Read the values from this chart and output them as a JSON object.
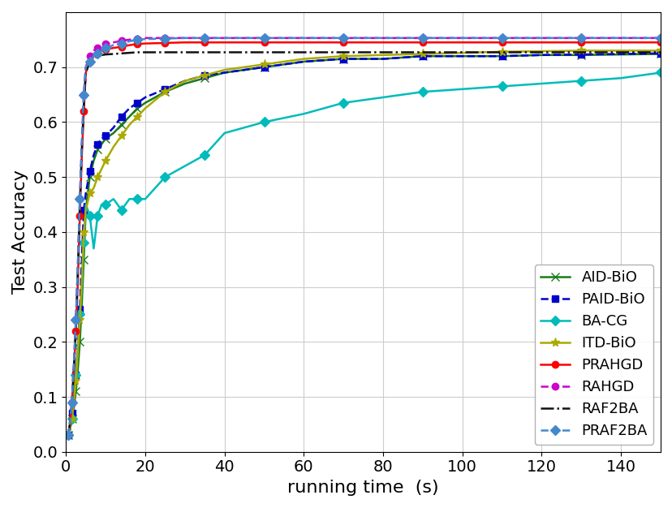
{
  "xlabel": "running time  (s)",
  "ylabel": "Test Accuracy",
  "xlim": [
    0,
    150
  ],
  "ylim": [
    0.0,
    0.8
  ],
  "yticks": [
    0.0,
    0.1,
    0.2,
    0.3,
    0.4,
    0.5,
    0.6,
    0.7
  ],
  "xticks": [
    0,
    20,
    40,
    60,
    80,
    100,
    120,
    140
  ],
  "series": [
    {
      "label": "AID-BiO",
      "color": "#1a7a1a",
      "linestyle": "-",
      "marker": "x",
      "linewidth": 1.8,
      "markersize": 7,
      "markevery": 2,
      "x": [
        0.5,
        1,
        1.5,
        2,
        2.5,
        3,
        3.5,
        4,
        4.5,
        5,
        6,
        7,
        8,
        9,
        10,
        12,
        14,
        16,
        18,
        20,
        25,
        30,
        35,
        40,
        50,
        60,
        70,
        80,
        90,
        100,
        110,
        120,
        130,
        140,
        150
      ],
      "y": [
        0.03,
        0.04,
        0.06,
        0.08,
        0.11,
        0.15,
        0.2,
        0.27,
        0.35,
        0.44,
        0.5,
        0.53,
        0.55,
        0.56,
        0.57,
        0.58,
        0.595,
        0.61,
        0.625,
        0.635,
        0.655,
        0.67,
        0.68,
        0.69,
        0.7,
        0.71,
        0.715,
        0.715,
        0.72,
        0.72,
        0.72,
        0.722,
        0.722,
        0.723,
        0.724
      ]
    },
    {
      "label": "PAID-BiO",
      "color": "#0000cc",
      "linestyle": "--",
      "marker": "s",
      "linewidth": 1.8,
      "markersize": 6,
      "markevery": 2,
      "x": [
        0.5,
        1,
        1.5,
        2,
        2.5,
        3,
        3.5,
        4,
        4.5,
        5,
        6,
        7,
        8,
        9,
        10,
        12,
        14,
        16,
        18,
        20,
        25,
        30,
        35,
        40,
        50,
        60,
        70,
        80,
        90,
        100,
        110,
        120,
        130,
        140,
        150
      ],
      "y": [
        0.03,
        0.04,
        0.07,
        0.1,
        0.14,
        0.19,
        0.26,
        0.35,
        0.44,
        0.47,
        0.51,
        0.54,
        0.56,
        0.57,
        0.575,
        0.59,
        0.61,
        0.625,
        0.635,
        0.645,
        0.66,
        0.675,
        0.685,
        0.69,
        0.7,
        0.71,
        0.715,
        0.715,
        0.72,
        0.72,
        0.72,
        0.722,
        0.723,
        0.724,
        0.725
      ]
    },
    {
      "label": "BA-CG",
      "color": "#00bbbb",
      "linestyle": "-",
      "marker": "D",
      "linewidth": 1.8,
      "markersize": 6,
      "markevery": 2,
      "x": [
        0.5,
        1,
        1.5,
        2,
        2.5,
        3,
        3.5,
        4,
        4.5,
        5,
        6,
        7,
        8,
        9,
        10,
        12,
        14,
        16,
        18,
        20,
        25,
        30,
        35,
        40,
        50,
        60,
        70,
        80,
        90,
        100,
        110,
        120,
        130,
        140,
        150
      ],
      "y": [
        0.03,
        0.04,
        0.06,
        0.1,
        0.14,
        0.19,
        0.25,
        0.3,
        0.38,
        0.45,
        0.43,
        0.37,
        0.43,
        0.45,
        0.45,
        0.46,
        0.44,
        0.46,
        0.46,
        0.46,
        0.5,
        0.52,
        0.54,
        0.58,
        0.6,
        0.615,
        0.635,
        0.645,
        0.655,
        0.66,
        0.665,
        0.67,
        0.675,
        0.68,
        0.69
      ]
    },
    {
      "label": "ITD-BiO",
      "color": "#aaaa00",
      "linestyle": "-",
      "marker": "*",
      "linewidth": 1.8,
      "markersize": 8,
      "markevery": 2,
      "x": [
        0.5,
        1,
        1.5,
        2,
        2.5,
        3,
        3.5,
        4,
        4.5,
        5,
        6,
        7,
        8,
        9,
        10,
        12,
        14,
        16,
        18,
        20,
        25,
        30,
        35,
        40,
        50,
        60,
        70,
        80,
        90,
        100,
        110,
        120,
        130,
        140,
        150
      ],
      "y": [
        0.03,
        0.04,
        0.06,
        0.09,
        0.13,
        0.18,
        0.24,
        0.31,
        0.4,
        0.44,
        0.47,
        0.48,
        0.5,
        0.515,
        0.53,
        0.555,
        0.575,
        0.595,
        0.61,
        0.625,
        0.655,
        0.675,
        0.685,
        0.695,
        0.705,
        0.715,
        0.72,
        0.722,
        0.724,
        0.726,
        0.728,
        0.729,
        0.73,
        0.73,
        0.73
      ]
    },
    {
      "label": "PRAHGD",
      "color": "#ff0000",
      "linestyle": "-",
      "marker": "o",
      "linewidth": 1.8,
      "markersize": 6,
      "markevery": 2,
      "x": [
        0.5,
        1,
        1.5,
        2,
        2.5,
        3,
        3.5,
        4,
        4.5,
        5,
        6,
        7,
        8,
        9,
        10,
        12,
        14,
        16,
        18,
        20,
        25,
        30,
        35,
        40,
        50,
        60,
        70,
        80,
        90,
        100,
        110,
        120,
        130,
        140,
        150
      ],
      "y": [
        0.03,
        0.05,
        0.09,
        0.15,
        0.22,
        0.31,
        0.43,
        0.54,
        0.62,
        0.69,
        0.71,
        0.72,
        0.725,
        0.73,
        0.732,
        0.735,
        0.737,
        0.74,
        0.742,
        0.743,
        0.744,
        0.745,
        0.745,
        0.745,
        0.745,
        0.745,
        0.745,
        0.745,
        0.745,
        0.745,
        0.745,
        0.745,
        0.745,
        0.745,
        0.745
      ]
    },
    {
      "label": "RAHGD",
      "color": "#cc00cc",
      "linestyle": "--",
      "marker": "o",
      "linewidth": 1.8,
      "markersize": 6,
      "markevery": 2,
      "x": [
        0.5,
        1,
        1.5,
        2,
        2.5,
        3,
        3.5,
        4,
        4.5,
        5,
        6,
        7,
        8,
        9,
        10,
        12,
        14,
        16,
        18,
        20,
        25,
        30,
        35,
        40,
        50,
        60,
        70,
        80,
        90,
        100,
        110,
        120,
        130,
        140,
        150
      ],
      "y": [
        0.03,
        0.05,
        0.09,
        0.16,
        0.24,
        0.34,
        0.46,
        0.56,
        0.65,
        0.7,
        0.72,
        0.73,
        0.735,
        0.74,
        0.742,
        0.745,
        0.748,
        0.75,
        0.752,
        0.753,
        0.753,
        0.753,
        0.753,
        0.753,
        0.753,
        0.753,
        0.753,
        0.753,
        0.753,
        0.753,
        0.753,
        0.753,
        0.753,
        0.753,
        0.753
      ]
    },
    {
      "label": "RAF2BA",
      "color": "#111111",
      "linestyle": "-.",
      "marker": "None",
      "linewidth": 1.8,
      "markersize": 0,
      "markevery": 1,
      "x": [
        0.5,
        1,
        1.5,
        2,
        2.5,
        3,
        3.5,
        4,
        4.5,
        5,
        6,
        7,
        8,
        9,
        10,
        12,
        14,
        16,
        18,
        20,
        25,
        30,
        35,
        40,
        50,
        60,
        70,
        80,
        90,
        100,
        110,
        120,
        130,
        140,
        150
      ],
      "y": [
        0.03,
        0.05,
        0.09,
        0.15,
        0.23,
        0.33,
        0.45,
        0.55,
        0.63,
        0.69,
        0.71,
        0.715,
        0.72,
        0.722,
        0.723,
        0.724,
        0.725,
        0.726,
        0.727,
        0.727,
        0.727,
        0.727,
        0.727,
        0.727,
        0.727,
        0.727,
        0.727,
        0.727,
        0.727,
        0.727,
        0.727,
        0.727,
        0.727,
        0.727,
        0.727
      ]
    },
    {
      "label": "PRAF2BA",
      "color": "#4488cc",
      "linestyle": "--",
      "marker": "D",
      "linewidth": 1.8,
      "markersize": 6,
      "markevery": 2,
      "x": [
        0.5,
        1,
        1.5,
        2,
        2.5,
        3,
        3.5,
        4,
        4.5,
        5,
        6,
        7,
        8,
        9,
        10,
        12,
        14,
        16,
        18,
        20,
        25,
        30,
        35,
        40,
        50,
        60,
        70,
        80,
        90,
        100,
        110,
        120,
        130,
        140,
        150
      ],
      "y": [
        0.03,
        0.05,
        0.09,
        0.16,
        0.24,
        0.34,
        0.46,
        0.56,
        0.65,
        0.7,
        0.71,
        0.72,
        0.725,
        0.73,
        0.735,
        0.74,
        0.743,
        0.747,
        0.75,
        0.751,
        0.752,
        0.753,
        0.753,
        0.753,
        0.753,
        0.753,
        0.753,
        0.753,
        0.753,
        0.753,
        0.753,
        0.753,
        0.753,
        0.753,
        0.753
      ]
    }
  ],
  "legend_loc": "lower right",
  "legend_fontsize": 13,
  "axis_label_fontsize": 16,
  "tick_fontsize": 14,
  "figsize": [
    8.29,
    6.26
  ],
  "dpi": 100,
  "background_color": "#ffffff"
}
